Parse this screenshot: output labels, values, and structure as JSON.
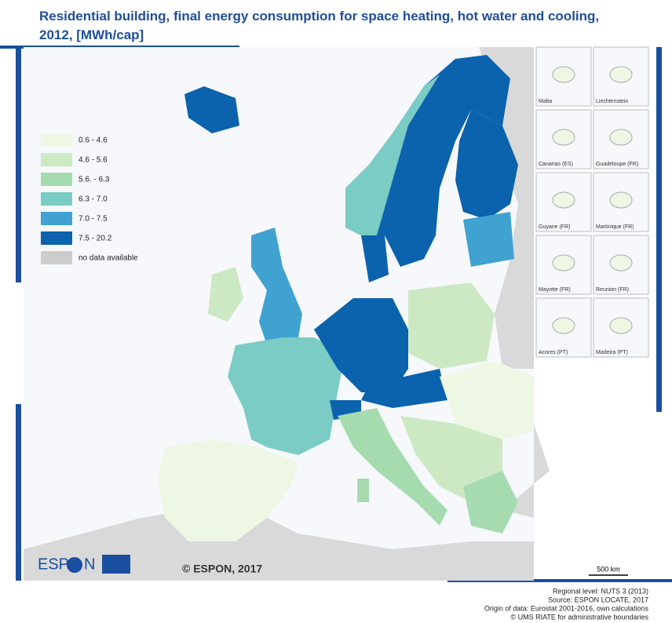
{
  "header": {
    "title_line1": "Residential building, final energy consumption for space heating, hot water and cooling,",
    "title_line2": "2012, [MWh/cap]"
  },
  "legend": {
    "items": [
      {
        "label": "0.6 - 4.6",
        "color": "#eef7e4"
      },
      {
        "label": "4.6 - 5.6",
        "color": "#cce9c4"
      },
      {
        "label": "5.6. - 6.3",
        "color": "#a6dbb0"
      },
      {
        "label": "6.3 - 7.0",
        "color": "#7accc4"
      },
      {
        "label": "7.0 - 7.5",
        "color": "#3fa2d1"
      },
      {
        "label": "7.5 - 20.2",
        "color": "#0b62ad"
      },
      {
        "label": "no data available",
        "color": "#cccccc"
      }
    ]
  },
  "insets": [
    "Malta",
    "Liechtenstein",
    "Canarias (ES)",
    "Guadeloupe (FR)",
    "Guyane (FR)",
    "Martinique (FR)",
    "Mayotte (FR)",
    "Reunion (FR)",
    "Acores (PT)",
    "Madeira (PT)"
  ],
  "scale": "500 km",
  "copyright": "© ESPON, 2017",
  "logo": {
    "left": "ESP",
    "right": "N"
  },
  "footer": [
    "Regional level: NUTS 3 (2013)",
    "Source: ESPON LOCATE, 2017",
    "Origin of data: Eurostat 2001-2016, own calculations",
    "© UMS RIATE for administrative boundaries"
  ]
}
